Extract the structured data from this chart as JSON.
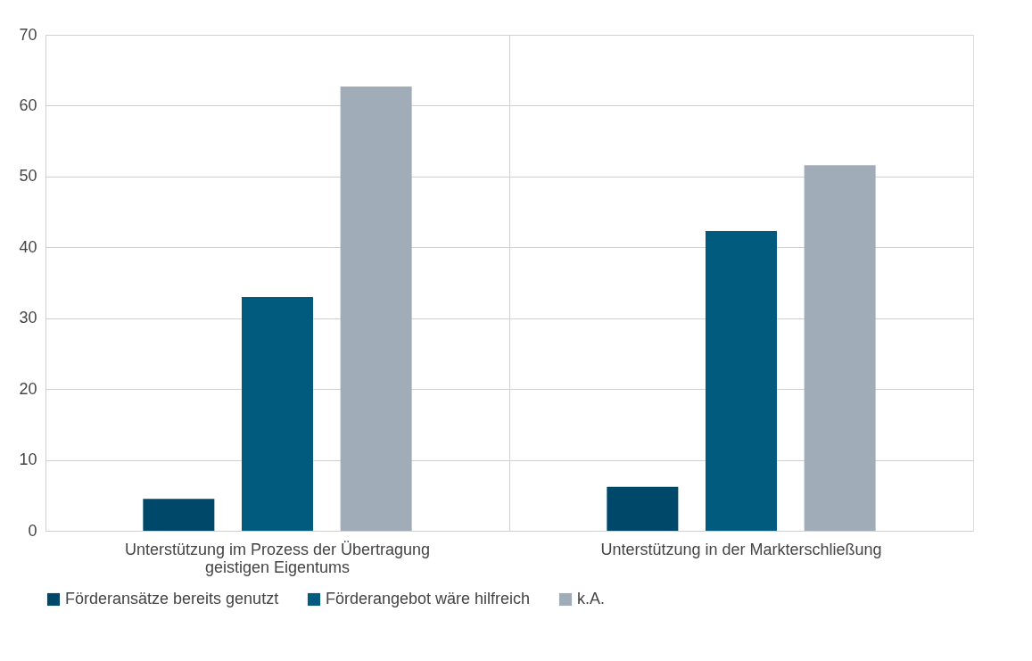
{
  "chart_data": {
    "type": "bar",
    "categories": [
      "Unterstützung im Prozess der Übertragung geistigen Eigentums",
      "Unterstützung in der Markterschließung"
    ],
    "series": [
      {
        "name": "Förderansätze bereits genutzt",
        "color": "#00486a",
        "values": [
          4.5,
          6.2
        ]
      },
      {
        "name": "Förderangebot wäre hilfreich",
        "color": "#005b7f",
        "values": [
          33.0,
          42.3
        ]
      },
      {
        "name": "k.A.",
        "color": "#a0acb8",
        "values": [
          62.7,
          51.6
        ]
      }
    ],
    "ylim": [
      0,
      70
    ],
    "yticks": [
      0,
      10,
      20,
      30,
      40,
      50,
      60,
      70
    ],
    "grid": true,
    "legend": "bottom"
  }
}
